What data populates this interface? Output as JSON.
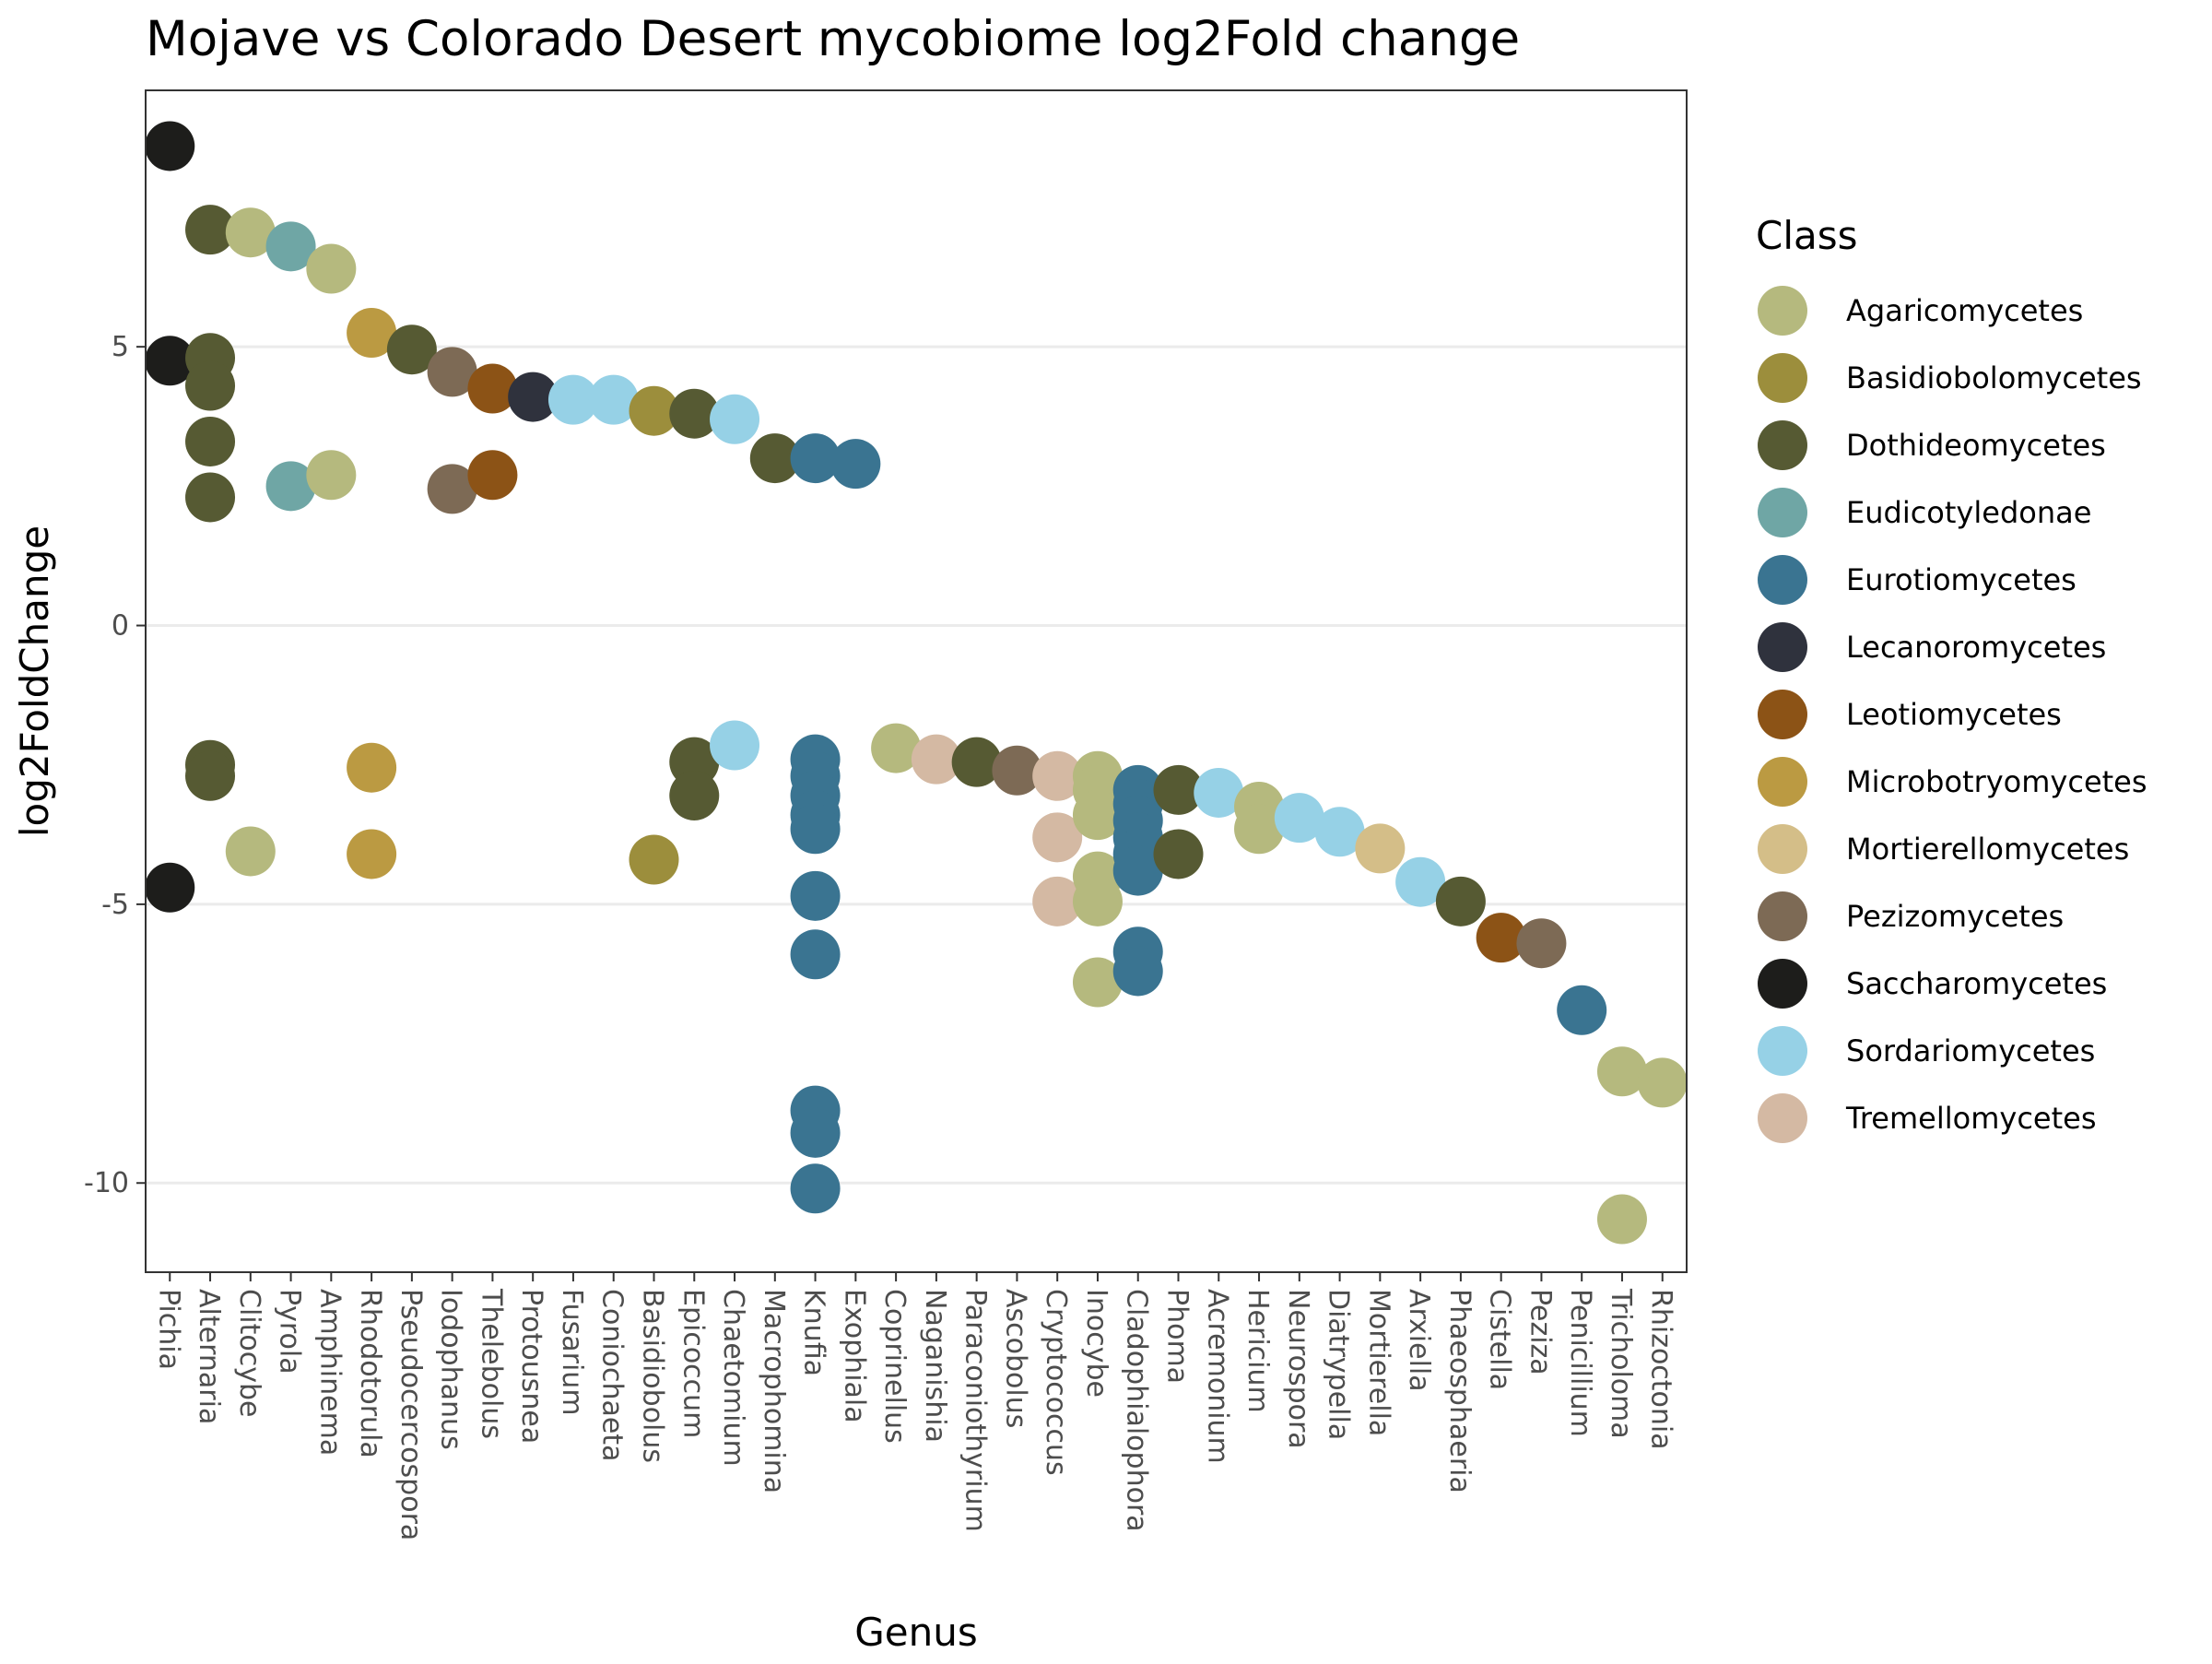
{
  "chart_data": {
    "type": "scatter",
    "title": "Mojave vs Colorado Desert mycobiome log2Fold change",
    "xlabel": "Genus",
    "ylabel": "log2FoldChange",
    "ylim": [
      -11.6,
      9.6
    ],
    "yticks": [
      -10,
      -5,
      0,
      5
    ],
    "ytick_labels": [
      "-10",
      "-5",
      "0",
      "5"
    ],
    "grid": true,
    "legend_position": "right",
    "legend_title": "Class",
    "categories": [
      "Pichia",
      "Alternaria",
      "Clitocybe",
      "Pyrola",
      "Amphinema",
      "Rhodotorula",
      "Pseudocercospora",
      "Iodophanus",
      "Thelebolus",
      "Protousnea",
      "Fusarium",
      "Coniochaeta",
      "Basidiobolus",
      "Epicoccum",
      "Chaetomium",
      "Macrophomina",
      "Knufia",
      "Exophiala",
      "Coprinellus",
      "Naganishia",
      "Paraconiothyrium",
      "Ascobolus",
      "Cryptococcus",
      "Inocybe",
      "Cladophialophora",
      "Phoma",
      "Acremonium",
      "Hericium",
      "Neurospora",
      "Diatrypella",
      "Mortierella",
      "Arxiella",
      "Phaeosphaeria",
      "Cistella",
      "Pezizа",
      "Penicillium",
      "Tricholoma",
      "Rhizoctonia"
    ],
    "classes": [
      {
        "name": "Agaricomycetes",
        "color": "#b5b97e"
      },
      {
        "name": "Basidiobolomycetes",
        "color": "#9c8e3c"
      },
      {
        "name": "Dothideomycetes",
        "color": "#565a33"
      },
      {
        "name": "Eudicotyledonae",
        "color": "#6fa6a5"
      },
      {
        "name": "Eurotiomycetes",
        "color": "#3a7491"
      },
      {
        "name": "Lecanoromycetes",
        "color": "#2f323d"
      },
      {
        "name": "Leotiomycetes",
        "color": "#8c5316"
      },
      {
        "name": "Microbotryomycetes",
        "color": "#bb9a42"
      },
      {
        "name": "Mortierellomycetes",
        "color": "#d4be88"
      },
      {
        "name": "Pezizomycetes",
        "color": "#7d6a55"
      },
      {
        "name": "Saccharomycetes",
        "color": "#1d1d1b"
      },
      {
        "name": "Sordariomycetes",
        "color": "#96d1e6"
      },
      {
        "name": "Tremellomycetes",
        "color": "#d4b9a3"
      }
    ],
    "points": [
      {
        "genus": "Pichia",
        "class": "Saccharomycetes",
        "y": 8.6
      },
      {
        "genus": "Pichia",
        "class": "Saccharomycetes",
        "y": 4.75
      },
      {
        "genus": "Pichia",
        "class": "Saccharomycetes",
        "y": -4.7
      },
      {
        "genus": "Alternaria",
        "class": "Dothideomycetes",
        "y": 7.1
      },
      {
        "genus": "Alternaria",
        "class": "Dothideomycetes",
        "y": 4.8
      },
      {
        "genus": "Alternaria",
        "class": "Dothideomycetes",
        "y": 4.3
      },
      {
        "genus": "Alternaria",
        "class": "Dothideomycetes",
        "y": 3.3
      },
      {
        "genus": "Alternaria",
        "class": "Dothideomycetes",
        "y": 2.3
      },
      {
        "genus": "Alternaria",
        "class": "Dothideomycetes",
        "y": -2.5
      },
      {
        "genus": "Alternaria",
        "class": "Dothideomycetes",
        "y": -2.7
      },
      {
        "genus": "Clitocybe",
        "class": "Agaricomycetes",
        "y": 7.05
      },
      {
        "genus": "Clitocybe",
        "class": "Agaricomycetes",
        "y": -4.05
      },
      {
        "genus": "Pyrola",
        "class": "Eudicotyledonae",
        "y": 6.8
      },
      {
        "genus": "Pyrola",
        "class": "Eudicotyledonae",
        "y": 2.5
      },
      {
        "genus": "Amphinema",
        "class": "Agaricomycetes",
        "y": 6.4
      },
      {
        "genus": "Amphinema",
        "class": "Agaricomycetes",
        "y": 2.7
      },
      {
        "genus": "Rhodotorula",
        "class": "Microbotryomycetes",
        "y": 5.25
      },
      {
        "genus": "Rhodotorula",
        "class": "Microbotryomycetes",
        "y": -2.55
      },
      {
        "genus": "Rhodotorula",
        "class": "Microbotryomycetes",
        "y": -4.1
      },
      {
        "genus": "Pseudocercospora",
        "class": "Dothideomycetes",
        "y": 4.95
      },
      {
        "genus": "Iodophanus",
        "class": "Pezizomycetes",
        "y": 4.55
      },
      {
        "genus": "Iodophanus",
        "class": "Pezizomycetes",
        "y": 2.45
      },
      {
        "genus": "Thelebolus",
        "class": "Leotiomycetes",
        "y": 4.25
      },
      {
        "genus": "Thelebolus",
        "class": "Leotiomycetes",
        "y": 2.7
      },
      {
        "genus": "Protousnea",
        "class": "Lecanoromycetes",
        "y": 4.1
      },
      {
        "genus": "Fusarium",
        "class": "Sordariomycetes",
        "y": 4.05
      },
      {
        "genus": "Coniochaeta",
        "class": "Sordariomycetes",
        "y": 4.05
      },
      {
        "genus": "Basidiobolus",
        "class": "Basidiobolomycetes",
        "y": 3.85
      },
      {
        "genus": "Basidiobolus",
        "class": "Basidiobolomycetes",
        "y": -4.2
      },
      {
        "genus": "Epicoccum",
        "class": "Dothideomycetes",
        "y": 3.8
      },
      {
        "genus": "Epicoccum",
        "class": "Dothideomycetes",
        "y": -2.45
      },
      {
        "genus": "Epicoccum",
        "class": "Dothideomycetes",
        "y": -3.05
      },
      {
        "genus": "Chaetomium",
        "class": "Sordariomycetes",
        "y": 3.7
      },
      {
        "genus": "Chaetomium",
        "class": "Sordariomycetes",
        "y": -2.15
      },
      {
        "genus": "Macrophomina",
        "class": "Dothideomycetes",
        "y": 3.0
      },
      {
        "genus": "Knufia",
        "class": "Eurotiomycetes",
        "y": 3.0
      },
      {
        "genus": "Knufia",
        "class": "Eurotiomycetes",
        "y": -2.4
      },
      {
        "genus": "Knufia",
        "class": "Eurotiomycetes",
        "y": -2.7
      },
      {
        "genus": "Knufia",
        "class": "Eurotiomycetes",
        "y": -3.05
      },
      {
        "genus": "Knufia",
        "class": "Eurotiomycetes",
        "y": -3.4
      },
      {
        "genus": "Knufia",
        "class": "Eurotiomycetes",
        "y": -3.65
      },
      {
        "genus": "Knufia",
        "class": "Eurotiomycetes",
        "y": -4.85
      },
      {
        "genus": "Knufia",
        "class": "Eurotiomycetes",
        "y": -5.9
      },
      {
        "genus": "Knufia",
        "class": "Eurotiomycetes",
        "y": -8.7
      },
      {
        "genus": "Knufia",
        "class": "Eurotiomycetes",
        "y": -9.1
      },
      {
        "genus": "Knufia",
        "class": "Eurotiomycetes",
        "y": -10.1
      },
      {
        "genus": "Exophiala",
        "class": "Eurotiomycetes",
        "y": 2.9
      },
      {
        "genus": "Coprinellus",
        "class": "Agaricomycetes",
        "y": -2.2
      },
      {
        "genus": "Naganishia",
        "class": "Tremellomycetes",
        "y": -2.4
      },
      {
        "genus": "Paraconiothyrium",
        "class": "Dothideomycetes",
        "y": -2.45
      },
      {
        "genus": "Ascobolus",
        "class": "Pezizomycetes",
        "y": -2.6
      },
      {
        "genus": "Cryptococcus",
        "class": "Tremellomycetes",
        "y": -2.7
      },
      {
        "genus": "Cryptococcus",
        "class": "Tremellomycetes",
        "y": -3.8
      },
      {
        "genus": "Cryptococcus",
        "class": "Tremellomycetes",
        "y": -4.95
      },
      {
        "genus": "Inocybe",
        "class": "Agaricomycetes",
        "y": -2.7
      },
      {
        "genus": "Inocybe",
        "class": "Agaricomycetes",
        "y": -2.95
      },
      {
        "genus": "Inocybe",
        "class": "Agaricomycetes",
        "y": -3.4
      },
      {
        "genus": "Inocybe",
        "class": "Agaricomycetes",
        "y": -4.5
      },
      {
        "genus": "Inocybe",
        "class": "Agaricomycetes",
        "y": -4.95
      },
      {
        "genus": "Inocybe",
        "class": "Agaricomycetes",
        "y": -6.4
      },
      {
        "genus": "Cladophialophora",
        "class": "Eurotiomycetes",
        "y": -2.95
      },
      {
        "genus": "Cladophialophora",
        "class": "Eurotiomycetes",
        "y": -3.2
      },
      {
        "genus": "Cladophialophora",
        "class": "Eurotiomycetes",
        "y": -3.5
      },
      {
        "genus": "Cladophialophora",
        "class": "Eurotiomycetes",
        "y": -3.8
      },
      {
        "genus": "Cladophialophora",
        "class": "Eurotiomycetes",
        "y": -4.1
      },
      {
        "genus": "Cladophialophora",
        "class": "Eurotiomycetes",
        "y": -4.4
      },
      {
        "genus": "Cladophialophora",
        "class": "Eurotiomycetes",
        "y": -5.85
      },
      {
        "genus": "Cladophialophora",
        "class": "Eurotiomycetes",
        "y": -6.2
      },
      {
        "genus": "Phoma",
        "class": "Dothideomycetes",
        "y": -2.95
      },
      {
        "genus": "Phoma",
        "class": "Dothideomycetes",
        "y": -4.1
      },
      {
        "genus": "Acremonium",
        "class": "Sordariomycetes",
        "y": -3.0
      },
      {
        "genus": "Hericium",
        "class": "Agaricomycetes",
        "y": -3.25
      },
      {
        "genus": "Hericium",
        "class": "Agaricomycetes",
        "y": -3.65
      },
      {
        "genus": "Neurospora",
        "class": "Sordariomycetes",
        "y": -3.45
      },
      {
        "genus": "Diatrypella",
        "class": "Sordariomycetes",
        "y": -3.7
      },
      {
        "genus": "Mortierella",
        "class": "Mortierellomycetes",
        "y": -4.0
      },
      {
        "genus": "Arxiella",
        "class": "Sordariomycetes",
        "y": -4.6
      },
      {
        "genus": "Phaeosphaeria",
        "class": "Dothideomycetes",
        "y": -4.95
      },
      {
        "genus": "Cistella",
        "class": "Leotiomycetes",
        "y": -5.6
      },
      {
        "genus": "Pezizа",
        "class": "Pezizomycetes",
        "y": -5.7
      },
      {
        "genus": "Penicillium",
        "class": "Eurotiomycetes",
        "y": -6.9
      },
      {
        "genus": "Tricholoma",
        "class": "Agaricomycetes",
        "y": -8.0
      },
      {
        "genus": "Tricholoma",
        "class": "Agaricomycetes",
        "y": -10.65
      },
      {
        "genus": "Rhizoctonia",
        "class": "Agaricomycetes",
        "y": -8.2
      }
    ]
  }
}
